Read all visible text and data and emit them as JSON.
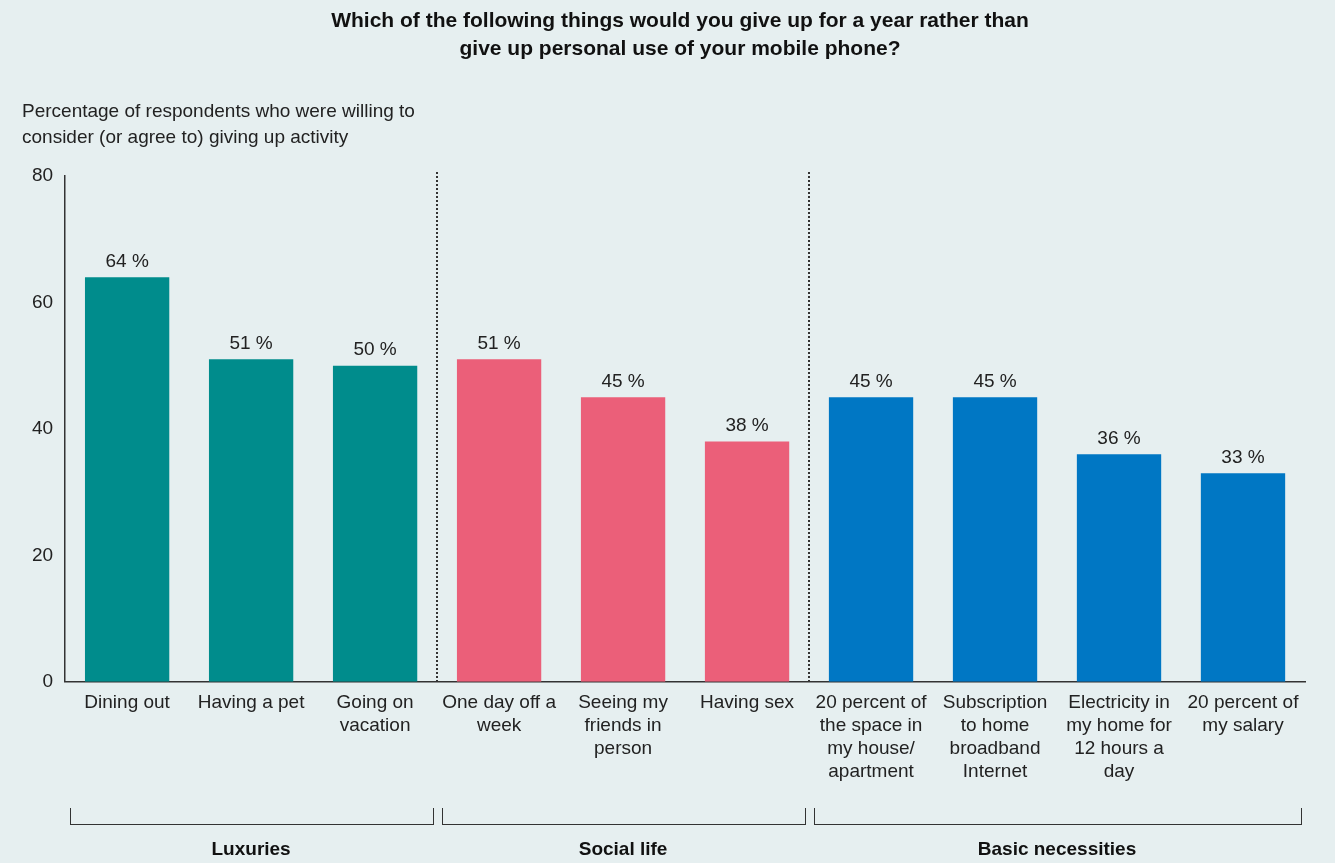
{
  "chart_data": {
    "type": "bar",
    "title": "Which of the following things would you give up for a year rather than give up personal use of your mobile phone?",
    "ylabel": "Percentage of respondents who were willing to consider (or agree to) giving up activity",
    "categories": [
      "Dining out",
      "Having a pet",
      "Going on vacation",
      "One day off a week",
      "Seeing my friends in person",
      "Having sex",
      "20 percent of the space in my house/ apartment",
      "Subscription to home broadband Internet",
      "Electricity in my home for 12 hours a day",
      "20 percent of my salary"
    ],
    "values": [
      64,
      51,
      50,
      51,
      45,
      38,
      45,
      45,
      36,
      33
    ],
    "colors": [
      "#008c8c",
      "#008c8c",
      "#008c8c",
      "#eb5f79",
      "#eb5f79",
      "#eb5f79",
      "#0077c4",
      "#0077c4",
      "#0077c4",
      "#0077c4"
    ],
    "value_labels": [
      "64 %",
      "51 %",
      "50 %",
      "51 %",
      "45 %",
      "38 %",
      "45 %",
      "45 %",
      "36 %",
      "33 %"
    ],
    "ylim": [
      0,
      80
    ],
    "yticks": [
      0,
      20,
      40,
      60,
      80
    ],
    "grid": false,
    "legend": false,
    "annotations": [
      "Luxuries",
      "Social life",
      "Basic necessities"
    ]
  }
}
